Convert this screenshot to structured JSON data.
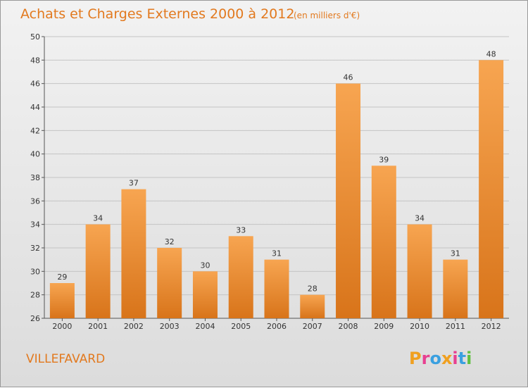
{
  "chart_data": {
    "type": "bar",
    "title": "Achats et Charges Externes 2000 à 2012",
    "subtitle": "(en milliers d'€)",
    "categories": [
      "2000",
      "2001",
      "2002",
      "2003",
      "2004",
      "2005",
      "2006",
      "2007",
      "2008",
      "2009",
      "2010",
      "2011",
      "2012"
    ],
    "values": [
      29,
      34,
      37,
      32,
      30,
      33,
      31,
      28,
      46,
      39,
      34,
      31,
      48
    ],
    "ylim": [
      26,
      50
    ],
    "yticks": [
      26,
      28,
      30,
      32,
      34,
      36,
      38,
      40,
      42,
      44,
      46,
      48,
      50
    ],
    "grid": true,
    "bar_color_top": "#f7a551",
    "bar_color_bottom": "#d8741a"
  },
  "commune": "VILLEFAVARD",
  "logo": {
    "text": "Proxiti",
    "letter_colors": [
      "#f0a020",
      "#e84090",
      "#3aa0e0",
      "#f0a020",
      "#e84090",
      "#3aa0e0",
      "#60c040"
    ]
  }
}
